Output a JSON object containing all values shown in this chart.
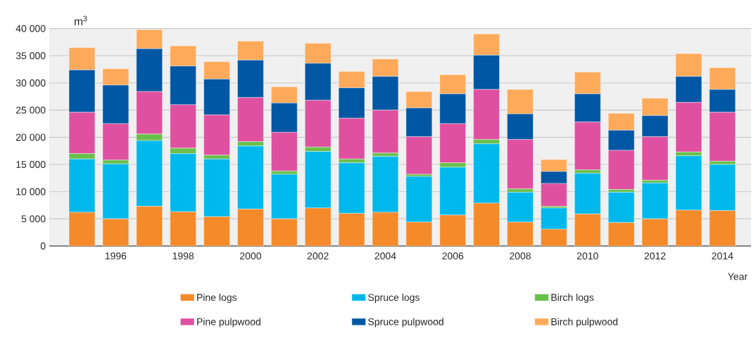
{
  "chart_data": {
    "type": "bar",
    "stacked": true,
    "ylabel": "m$^{3}$",
    "xlabel": "Year",
    "categories": [
      null,
      "1996",
      null,
      "1998",
      null,
      "2000",
      null,
      "2002",
      null,
      "2004",
      null,
      "2006",
      null,
      "2008",
      null,
      "2010",
      null,
      "2012",
      null,
      "2014"
    ],
    "ylim": [
      0,
      40000
    ],
    "yticks": [
      0,
      {
        "value": 5000,
        "label": "5 000"
      },
      {
        "value": 10000,
        "label": "10 000"
      },
      {
        "value": 15000,
        "label": "15 000"
      },
      {
        "value": 20000,
        "label": "20 000"
      },
      {
        "value": 25000,
        "label": "25 000"
      },
      {
        "value": 30000,
        "label": "30 000"
      },
      {
        "value": 35000,
        "label": "35 000"
      },
      {
        "value": 40000,
        "label": "40 000"
      }
    ],
    "grid": "y",
    "legend": "bottom",
    "series": [
      {
        "name": "Pine logs",
        "color": "#f58a2a",
        "values": [
          6200,
          5000,
          7300,
          6300,
          5400,
          6800,
          5000,
          7000,
          6000,
          6200,
          4400,
          5700,
          7900,
          4400,
          3100,
          5900,
          4300,
          5000,
          6600,
          6500
        ]
      },
      {
        "name": "Spruce logs",
        "color": "#00b9ec",
        "values": [
          9800,
          10100,
          12100,
          10700,
          10600,
          11600,
          8200,
          10400,
          9300,
          10300,
          8400,
          8800,
          10900,
          5500,
          3900,
          7500,
          5600,
          6600,
          10000,
          8500
        ]
      },
      {
        "name": "Birch logs",
        "color": "#6abf4b",
        "values": [
          1000,
          700,
          1200,
          1000,
          700,
          800,
          600,
          800,
          700,
          600,
          400,
          800,
          800,
          600,
          300,
          600,
          500,
          500,
          700,
          600
        ]
      },
      {
        "name": "Pine pulpwood",
        "color": "#df50a0",
        "values": [
          7600,
          6700,
          7800,
          8000,
          7400,
          8100,
          7100,
          8600,
          7500,
          7900,
          6900,
          7200,
          9200,
          9100,
          4200,
          8800,
          7200,
          8000,
          9100,
          9000
        ]
      },
      {
        "name": "Spruce pulpwood",
        "color": "#0057a3",
        "values": [
          7800,
          7100,
          7900,
          7100,
          6600,
          6900,
          5400,
          6800,
          5600,
          6200,
          5300,
          5500,
          6300,
          4700,
          2200,
          5200,
          3700,
          3900,
          4800,
          4200
        ]
      },
      {
        "name": "Birch pulpwood",
        "color": "#ffaa5a",
        "values": [
          4100,
          3000,
          3500,
          3700,
          3200,
          3500,
          3000,
          3700,
          3000,
          3200,
          3000,
          3500,
          3900,
          4500,
          2200,
          4000,
          3100,
          3200,
          4200,
          4000
        ]
      }
    ]
  }
}
